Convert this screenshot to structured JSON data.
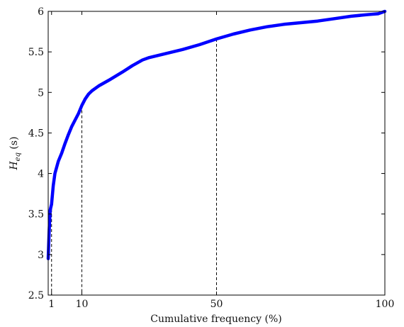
{
  "chart_data": {
    "type": "line",
    "title": "",
    "xlabel": "Cumulative frequency (%)",
    "ylabel": {
      "main": "H",
      "sub": "eq",
      "unit": " (s)"
    },
    "xlim": [
      0,
      100
    ],
    "ylim": [
      2.5,
      6
    ],
    "xticks": [
      {
        "value": 1,
        "label": "1"
      },
      {
        "value": 10,
        "label": "10"
      },
      {
        "value": 50,
        "label": "50"
      },
      {
        "value": 100,
        "label": "100"
      }
    ],
    "yticks": [
      {
        "value": 2.5,
        "label": "2.5"
      },
      {
        "value": 3,
        "label": "3"
      },
      {
        "value": 3.5,
        "label": "3.5"
      },
      {
        "value": 4,
        "label": "4"
      },
      {
        "value": 4.5,
        "label": "4.5"
      },
      {
        "value": 5,
        "label": "5"
      },
      {
        "value": 5.5,
        "label": "5.5"
      },
      {
        "value": 6,
        "label": "6"
      }
    ],
    "grid": false,
    "series": [
      {
        "color": "#0000ff",
        "points": [
          [
            0,
            2.95
          ],
          [
            0.3,
            3.3
          ],
          [
            0.6,
            3.55
          ],
          [
            1,
            3.62
          ],
          [
            1.5,
            3.85
          ],
          [
            2,
            4.0
          ],
          [
            3,
            4.15
          ],
          [
            4,
            4.25
          ],
          [
            5,
            4.37
          ],
          [
            6,
            4.48
          ],
          [
            7,
            4.58
          ],
          [
            8,
            4.66
          ],
          [
            9,
            4.74
          ],
          [
            10,
            4.84
          ],
          [
            11,
            4.92
          ],
          [
            12,
            4.98
          ],
          [
            13,
            5.02
          ],
          [
            15,
            5.08
          ],
          [
            18,
            5.15
          ],
          [
            22,
            5.25
          ],
          [
            25,
            5.33
          ],
          [
            28,
            5.4
          ],
          [
            30,
            5.43
          ],
          [
            35,
            5.48
          ],
          [
            40,
            5.53
          ],
          [
            45,
            5.59
          ],
          [
            50,
            5.66
          ],
          [
            55,
            5.72
          ],
          [
            60,
            5.77
          ],
          [
            65,
            5.81
          ],
          [
            70,
            5.84
          ],
          [
            75,
            5.86
          ],
          [
            80,
            5.88
          ],
          [
            85,
            5.91
          ],
          [
            90,
            5.94
          ],
          [
            95,
            5.96
          ],
          [
            98,
            5.97
          ],
          [
            100,
            6.0
          ]
        ]
      }
    ],
    "reference_lines": [
      {
        "x": 1,
        "y": 3.62
      },
      {
        "x": 10,
        "y": 4.84
      },
      {
        "x": 50,
        "y": 5.66
      }
    ],
    "line_color": "#0000ff",
    "reference_line_color": "#000000"
  }
}
